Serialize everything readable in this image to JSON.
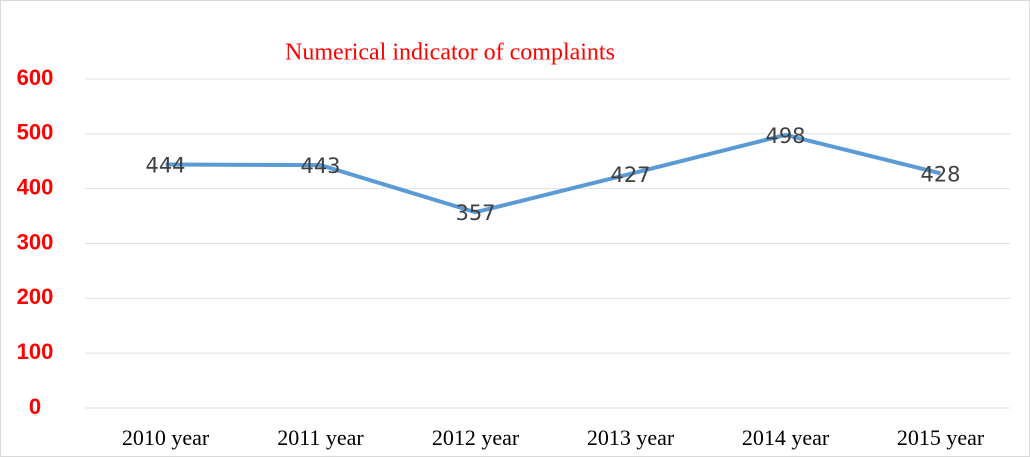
{
  "chart_data": {
    "type": "line",
    "title": "Numerical indicator of complaints",
    "categories": [
      "2010 year",
      "2011 year",
      "2012 year",
      "2013 year",
      "2014 year",
      "2015 year"
    ],
    "values": [
      444,
      443,
      357,
      427,
      498,
      428
    ],
    "color": "#5b9bd5",
    "ylim": [
      0,
      600
    ],
    "yticks": [
      0,
      100,
      200,
      300,
      400,
      500,
      600
    ],
    "grid": true
  }
}
